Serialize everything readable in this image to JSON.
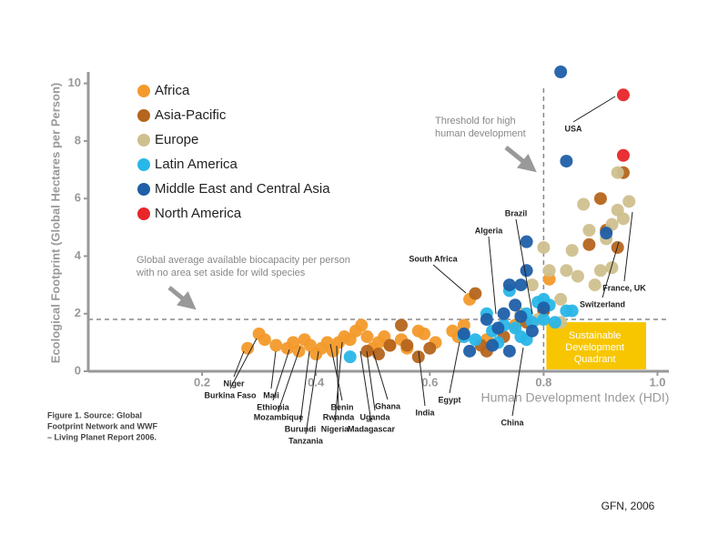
{
  "chart_data": {
    "type": "scatter",
    "x_label": "Human Development Index (HDI)",
    "y_label": "Ecological Footprint (Global Hectares per Person)",
    "xlim": [
      0,
      1.02
    ],
    "ylim": [
      0,
      10.4
    ],
    "xticks": [
      0.2,
      0.4,
      0.6,
      0.8,
      {
        "value": 1,
        "label": "1.0"
      }
    ],
    "yticks": [
      0,
      2,
      4,
      6,
      8,
      10
    ],
    "threshold_x": 0.8,
    "biocapacity_y": 1.8,
    "legend": "top-left",
    "series": [
      {
        "name": "Africa",
        "color": "#f39a2b",
        "x": [
          0.28,
          0.3,
          0.31,
          0.33,
          0.35,
          0.36,
          0.37,
          0.38,
          0.39,
          0.4,
          0.41,
          0.42,
          0.43,
          0.44,
          0.45,
          0.46,
          0.47,
          0.48,
          0.49,
          0.5,
          0.51,
          0.52,
          0.53,
          0.55,
          0.56,
          0.58,
          0.59,
          0.61,
          0.64,
          0.65,
          0.66,
          0.67,
          0.7,
          0.75,
          0.81
        ],
        "values": [
          0.8,
          1.3,
          1.1,
          0.9,
          0.8,
          1.0,
          0.7,
          1.1,
          0.9,
          0.6,
          0.8,
          1.0,
          0.7,
          1.0,
          1.2,
          1.1,
          1.4,
          1.6,
          1.2,
          0.8,
          1.0,
          1.2,
          0.9,
          1.1,
          0.8,
          1.4,
          1.3,
          1.0,
          1.4,
          1.2,
          1.6,
          2.5,
          1.1,
          1.6,
          3.2
        ]
      },
      {
        "name": "Asia-Pacific",
        "color": "#b5651d",
        "x": [
          0.49,
          0.51,
          0.53,
          0.55,
          0.56,
          0.58,
          0.6,
          0.68,
          0.69,
          0.7,
          0.73,
          0.77,
          0.8,
          0.88,
          0.9,
          0.93,
          0.94,
          0.91
        ],
        "values": [
          0.7,
          0.6,
          0.9,
          1.6,
          0.9,
          0.5,
          0.8,
          2.7,
          0.9,
          0.7,
          1.2,
          1.7,
          2.1,
          4.4,
          6.0,
          4.3,
          6.9,
          4.9
        ]
      },
      {
        "name": "Europe",
        "color": "#cfc08e",
        "x": [
          0.78,
          0.8,
          0.81,
          0.83,
          0.84,
          0.85,
          0.86,
          0.87,
          0.88,
          0.89,
          0.9,
          0.91,
          0.92,
          0.93,
          0.94,
          0.95,
          0.93,
          0.92,
          0.79,
          0.83,
          0.76
        ],
        "values": [
          3.0,
          4.3,
          3.5,
          2.5,
          3.5,
          4.2,
          3.3,
          5.8,
          4.9,
          3.0,
          3.5,
          4.6,
          5.1,
          5.6,
          5.3,
          5.9,
          6.9,
          3.6,
          1.8,
          1.7,
          2.0
        ]
      },
      {
        "name": "Latin America",
        "color": "#29b6e8",
        "x": [
          0.46,
          0.66,
          0.68,
          0.7,
          0.71,
          0.72,
          0.73,
          0.74,
          0.75,
          0.76,
          0.77,
          0.78,
          0.79,
          0.8,
          0.81,
          0.82,
          0.84,
          0.85,
          0.77,
          0.8
        ],
        "values": [
          0.5,
          1.2,
          1.1,
          2.0,
          1.4,
          1.0,
          1.6,
          2.8,
          1.5,
          1.2,
          2.0,
          1.7,
          2.4,
          1.8,
          2.3,
          1.7,
          2.1,
          2.1,
          1.1,
          2.5
        ]
      },
      {
        "name": "Middle East and Central Asia",
        "color": "#1f5fa8",
        "x": [
          0.66,
          0.67,
          0.7,
          0.71,
          0.72,
          0.73,
          0.74,
          0.75,
          0.76,
          0.76,
          0.77,
          0.77,
          0.78,
          0.8,
          0.83,
          0.84,
          0.91,
          0.74
        ],
        "values": [
          1.3,
          0.7,
          1.8,
          0.9,
          1.5,
          2.0,
          0.7,
          2.3,
          1.9,
          3.0,
          3.5,
          4.5,
          1.4,
          2.2,
          10.4,
          7.3,
          4.8,
          3.0
        ]
      },
      {
        "name": "North America",
        "color": "#e8262a",
        "x": [
          0.94,
          0.94
        ],
        "values": [
          9.6,
          7.5
        ]
      }
    ],
    "country_labels": [
      "Niger",
      "Burkina Faso",
      "Mali",
      "Ethiopia",
      "Mozambique",
      "Burundi",
      "Tanzania",
      "Benin",
      "Rwanda",
      "Nigeria",
      "Ghana",
      "Uganda",
      "Madagascar",
      "India",
      "Egypt",
      "South Africa",
      "Algeria",
      "Brazil",
      "China",
      "USA",
      "France, UK",
      "Switzerland"
    ],
    "threshold_annotation": [
      "Threshold for high",
      "human development"
    ],
    "biocapacity_annotation": [
      "Global average available biocapacity per person",
      "with no area set aside for wild species"
    ],
    "quadrant_label": [
      "Sustainable",
      "Development",
      "Quadrant"
    ],
    "caption": [
      "Figure 1. Source: Global",
      "Footprint Network and WWF",
      "– Living Planet Report 2006."
    ],
    "credit": "GFN, 2006"
  }
}
